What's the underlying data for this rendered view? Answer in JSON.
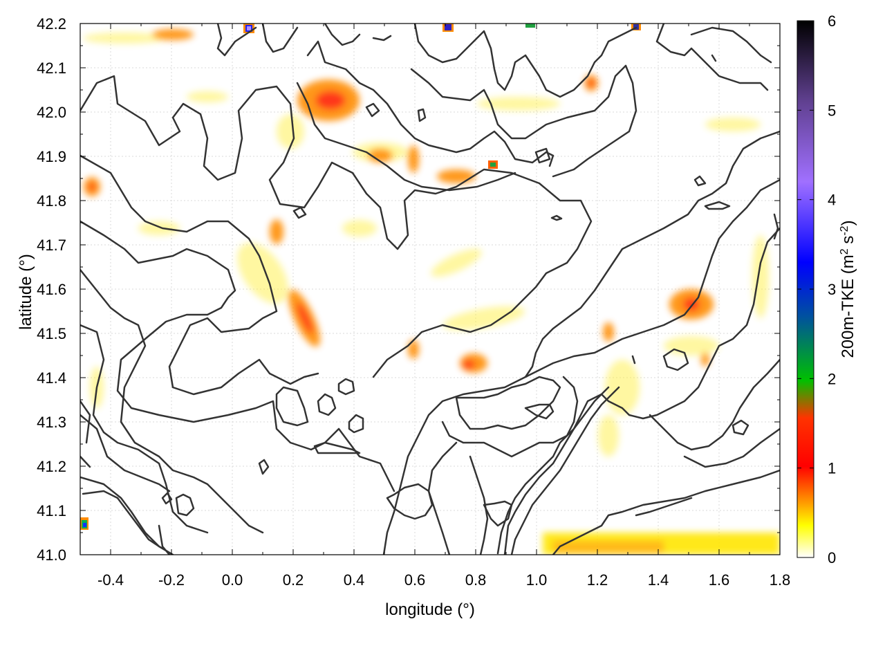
{
  "chart_data": {
    "type": "heatmap",
    "title": "",
    "xlabel": "longitude (°)",
    "ylabel": "latitude (°)",
    "xlim": [
      -0.5,
      1.8
    ],
    "ylim": [
      41.0,
      42.2
    ],
    "xticks": [
      "-0.4",
      "-0.2",
      "0.0",
      "0.2",
      "0.4",
      "0.6",
      "0.8",
      "1.0",
      "1.2",
      "1.4",
      "1.6",
      "1.8"
    ],
    "yticks": [
      "41.0",
      "41.1",
      "41.2",
      "41.3",
      "41.4",
      "41.5",
      "41.6",
      "41.7",
      "41.8",
      "41.9",
      "42.0",
      "42.1",
      "42.2"
    ],
    "grid": true,
    "colorbar": {
      "label": "200m-TKE (m² s⁻²)",
      "label_main": "200m-TKE (m",
      "label_sup1": "2",
      "label_mid": " s",
      "label_sup2": "-2",
      "label_end": ")",
      "range": [
        0,
        6
      ],
      "ticks": [
        "0",
        "1",
        "2",
        "3",
        "4",
        "5",
        "6"
      ],
      "colors": [
        "#ffffff",
        "#ffff00",
        "#ffa000",
        "#ff0000",
        "#00c000",
        "#0000ff",
        "#a070ff",
        "#000000"
      ]
    },
    "field_hotspots": [
      {
        "lon": 0.28,
        "lat": 41.5,
        "tke": 1.0
      },
      {
        "lon": 0.32,
        "lat": 42.02,
        "tke": 1.2
      },
      {
        "lon": 0.78,
        "lat": 41.43,
        "tke": 1.2
      },
      {
        "lon": 1.5,
        "lat": 41.58,
        "tke": 1.0
      },
      {
        "lon": 1.18,
        "lat": 42.07,
        "tke": 1.3
      },
      {
        "lon": -0.48,
        "lat": 41.07,
        "tke": 3.0
      },
      {
        "lon": -0.47,
        "lat": 41.82,
        "tke": 1.0
      },
      {
        "lon": 0.87,
        "lat": 41.88,
        "tke": 2.0
      },
      {
        "lon": 0.05,
        "lat": 42.19,
        "tke": 4.0
      },
      {
        "lon": 1.32,
        "lat": 42.19,
        "tke": 4.0
      },
      {
        "lon": 1.25,
        "lat": 41.02,
        "tke": 0.6
      }
    ]
  }
}
